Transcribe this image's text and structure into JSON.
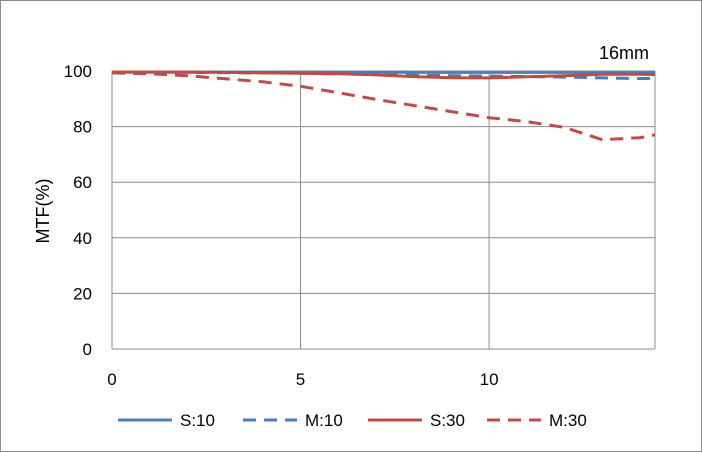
{
  "chart_data": {
    "type": "line",
    "title": "",
    "annotation": "16mm",
    "xlabel": "",
    "ylabel": "MTF(%)",
    "xlim": [
      0,
      14.4
    ],
    "ylim": [
      0,
      100
    ],
    "xticks": [
      0,
      5,
      10
    ],
    "yticks": [
      0,
      20,
      40,
      60,
      80,
      100
    ],
    "grid": true,
    "legend_position": "bottom",
    "series": [
      {
        "name": "S:10",
        "color": "#4a7ebb",
        "dash": "solid",
        "x": [
          0,
          1,
          2,
          3,
          4,
          5,
          6,
          7,
          8,
          9,
          10,
          11,
          12,
          13,
          14,
          14.4
        ],
        "y": [
          99.6,
          99.6,
          99.6,
          99.6,
          99.6,
          99.6,
          99.6,
          99.6,
          99.5,
          99.5,
          99.5,
          99.5,
          99.5,
          99.5,
          99.5,
          99.5
        ]
      },
      {
        "name": "M:10",
        "color": "#4a7ebb",
        "dash": "dashed",
        "x": [
          0,
          1,
          2,
          3,
          4,
          5,
          6,
          7,
          8,
          9,
          10,
          11,
          12,
          13,
          14,
          14.4
        ],
        "y": [
          99.5,
          99.5,
          99.5,
          99.4,
          99.3,
          99.2,
          99.0,
          98.8,
          98.5,
          98.3,
          98.2,
          98.0,
          97.8,
          97.5,
          97.3,
          97.3
        ]
      },
      {
        "name": "S:30",
        "color": "#be4b48",
        "dash": "solid",
        "x": [
          0,
          1,
          2,
          3,
          4,
          5,
          6,
          7,
          8,
          9,
          10,
          11,
          12,
          13,
          14,
          14.4
        ],
        "y": [
          99.6,
          99.6,
          99.6,
          99.5,
          99.3,
          99.2,
          99.0,
          98.6,
          98.0,
          97.6,
          97.5,
          97.9,
          98.3,
          98.8,
          98.8,
          98.7
        ]
      },
      {
        "name": "M:30",
        "color": "#be4b48",
        "dash": "dashed",
        "x": [
          0,
          1,
          2,
          3,
          4,
          5,
          6,
          7,
          8,
          9,
          10,
          11,
          12,
          13,
          14,
          14.4
        ],
        "y": [
          99.3,
          99.0,
          98.3,
          97.2,
          96.1,
          94.5,
          92.2,
          89.8,
          87.6,
          85.4,
          83.2,
          81.8,
          79.7,
          75.3,
          76.0,
          77.0
        ]
      }
    ]
  }
}
